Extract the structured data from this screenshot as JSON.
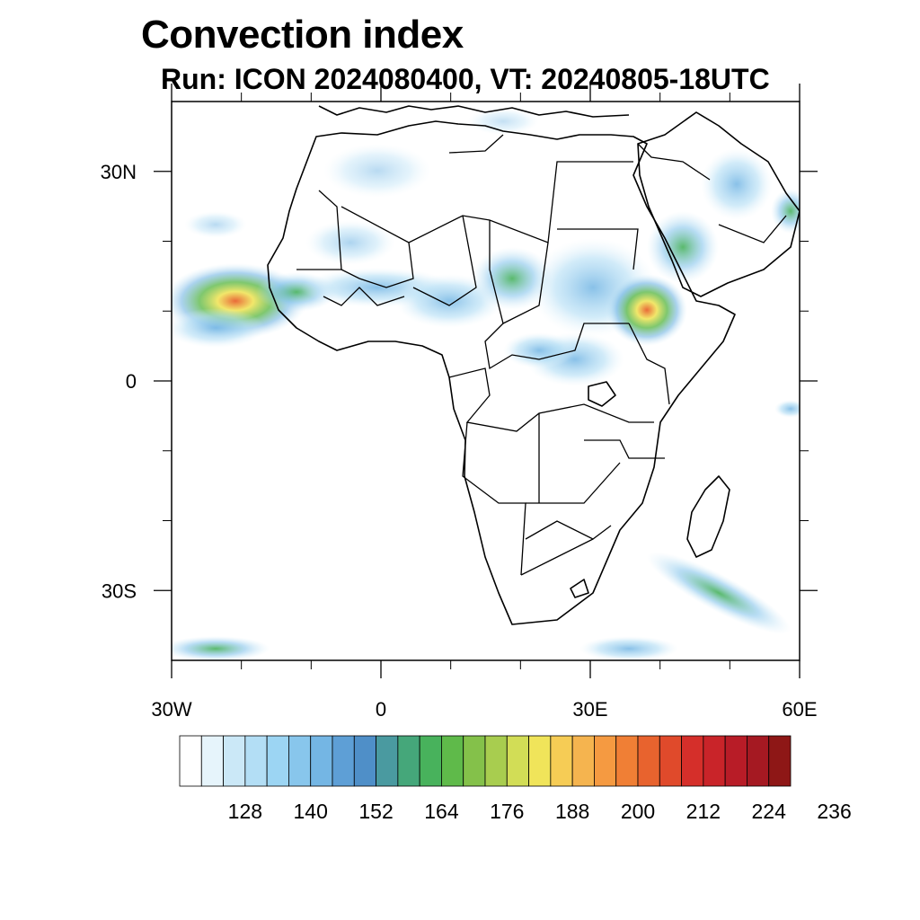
{
  "title": "Convection index",
  "subtitle": "Run: ICON 2024080400,  VT: 20240805-18UTC",
  "map": {
    "region": "Africa",
    "lon_range": [
      -30,
      60
    ],
    "lat_range": [
      -40,
      40
    ],
    "x_ticks": [
      {
        "value": -30,
        "label": "30W"
      },
      {
        "value": 0,
        "label": "0"
      },
      {
        "value": 30,
        "label": "30E"
      },
      {
        "value": 60,
        "label": "60E"
      }
    ],
    "y_ticks": [
      {
        "value": 30,
        "label": "30N"
      },
      {
        "value": 0,
        "label": "0"
      },
      {
        "value": -30,
        "label": "30S"
      }
    ],
    "minor_x_ticks": [
      -20,
      -10,
      10,
      20,
      40,
      50
    ],
    "minor_y_ticks": [
      20,
      10,
      -10,
      -20
    ]
  },
  "colorbar": {
    "colors": [
      "#ffffff",
      "#e6f4fb",
      "#cbe8f7",
      "#b3def5",
      "#9cd5f3",
      "#88c6ec",
      "#74b6e4",
      "#5e9fd6",
      "#4f8fc8",
      "#4a9aa0",
      "#45a77a",
      "#48b25c",
      "#5fba4a",
      "#84c14a",
      "#a8cd4f",
      "#d2dd56",
      "#f0e45a",
      "#f6cc55",
      "#f5b44f",
      "#f59a41",
      "#f07f35",
      "#e8632e",
      "#e04a2b",
      "#d52f2a",
      "#c92429",
      "#b81c27",
      "#a51922",
      "#8e1716"
    ],
    "labels": [
      "128",
      "140",
      "152",
      "164",
      "176",
      "188",
      "200",
      "212",
      "224",
      "236"
    ]
  }
}
